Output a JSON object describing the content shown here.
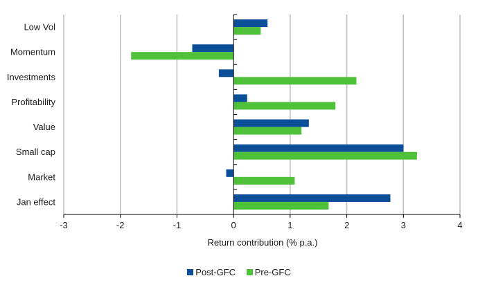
{
  "chart_data": {
    "type": "bar",
    "orientation": "horizontal",
    "categories": [
      "Low Vol",
      "Momentum",
      "Investments",
      "Profitability",
      "Value",
      "Small cap",
      "Market",
      "Jan effect"
    ],
    "series": [
      {
        "name": "Post-GFC",
        "color": "#0a4f97",
        "values": [
          0.6,
          -0.73,
          -0.26,
          0.24,
          1.33,
          3.0,
          -0.13,
          2.77
        ]
      },
      {
        "name": "Pre-GFC",
        "color": "#4fc03a",
        "values": [
          0.48,
          -1.81,
          2.17,
          1.8,
          1.2,
          3.24,
          1.08,
          1.68
        ]
      }
    ],
    "xlabel": "Return contribution (% p.a.)",
    "xlim": [
      -3,
      4
    ],
    "xticks": [
      -3,
      -2,
      -1,
      0,
      1,
      2,
      3,
      4
    ],
    "grid": "vertical",
    "legend": "bottom"
  },
  "legend": {
    "post_label": "Post-GFC",
    "pre_label": "Pre-GFC"
  }
}
